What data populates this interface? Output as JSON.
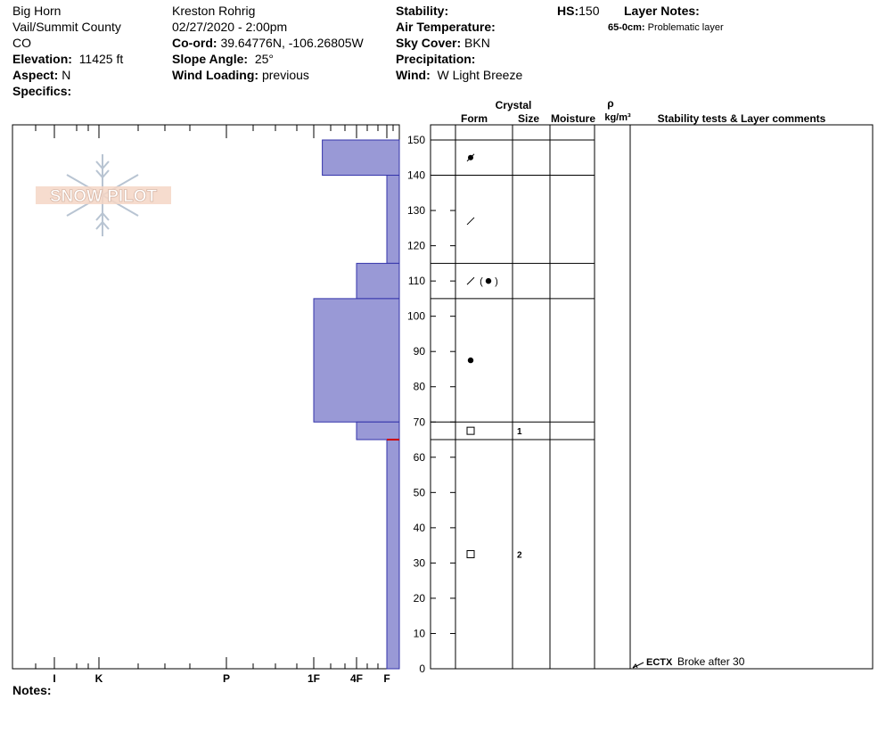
{
  "location": {
    "name": "Big Horn",
    "region": "Vail/Summit County",
    "state": "CO",
    "elevation_label": "Elevation:",
    "elevation": "11425 ft",
    "aspect_label": "Aspect:",
    "aspect": "N",
    "specifics_label": "Specifics:"
  },
  "observation": {
    "observer": "Kreston Rohrig",
    "datetime": "02/27/2020 - 2:00pm",
    "coord_label": "Co-ord:",
    "coord": "39.64776N, -106.26805W",
    "slope_label": "Slope Angle:",
    "slope": "25°",
    "wind_loading_label": "Wind Loading:",
    "wind_loading": "previous"
  },
  "conditions": {
    "stability_label": "Stability:",
    "air_temp_label": "Air Temperature:",
    "sky_cover_label": "Sky Cover:",
    "sky_cover": "BKN",
    "precip_label": "Precipitation:",
    "wind_label": "Wind:",
    "wind": "W Light Breeze"
  },
  "hs": {
    "label": "HS:",
    "value": "150"
  },
  "layer_notes": {
    "title": "Layer Notes:",
    "depth": "65-0cm:",
    "text": "Problematic layer"
  },
  "logo_text": "SNOW PILOT",
  "notes_label": "Notes:",
  "columns": {
    "crystal": "Crystal",
    "form": "Form",
    "size": "Size",
    "moisture": "Moisture",
    "rho": "ρ",
    "density_unit": "kg/m³",
    "stability": "Stability tests & Layer comments"
  },
  "colors": {
    "layer_fill": "#9999d6",
    "layer_stroke": "#3333aa",
    "marker": "#cc0000"
  },
  "chart_data": {
    "type": "bar",
    "depth_axis": {
      "min": 0,
      "max": 150,
      "step": 10,
      "ticks": [
        "0",
        "10",
        "20",
        "30",
        "40",
        "50",
        "60",
        "70",
        "80",
        "90",
        "100",
        "110",
        "120",
        "130",
        "140",
        "150"
      ]
    },
    "hardness_scale": [
      "I",
      "K",
      "P",
      "1F",
      "4F",
      "F"
    ],
    "layers": [
      {
        "top": 150,
        "bottom": 140,
        "hardness": "1F+",
        "hardness_value": 1.2
      },
      {
        "top": 140,
        "bottom": 115,
        "hardness": "F",
        "hardness_value": 4.8
      },
      {
        "top": 115,
        "bottom": 105,
        "hardness": "4F+",
        "hardness_value": 2.0
      },
      {
        "top": 105,
        "bottom": 70,
        "hardness": "1F",
        "hardness_value": 1.0
      },
      {
        "top": 70,
        "bottom": 65,
        "hardness": "4F",
        "hardness_value": 2.0
      },
      {
        "top": 65,
        "bottom": 0,
        "hardness": "F",
        "hardness_value": 4.8
      }
    ],
    "boundaries": [
      150,
      140,
      115,
      105,
      70,
      65
    ],
    "marker_depth": 65,
    "crystal_forms": [
      {
        "depth": 145,
        "form": "PP/DF",
        "size": ""
      },
      {
        "depth": 127,
        "form": "DF",
        "size": ""
      },
      {
        "depth": 110,
        "form": "DF (RG)",
        "size": ""
      },
      {
        "depth": 87.5,
        "form": "RG",
        "size": ""
      },
      {
        "depth": 67.5,
        "form": "FC",
        "size": "1"
      },
      {
        "depth": 32.5,
        "form": "FC",
        "size": "2"
      }
    ],
    "stability_tests": [
      {
        "depth": 0,
        "code": "ECTX",
        "comment": "Broke after 30"
      }
    ]
  }
}
